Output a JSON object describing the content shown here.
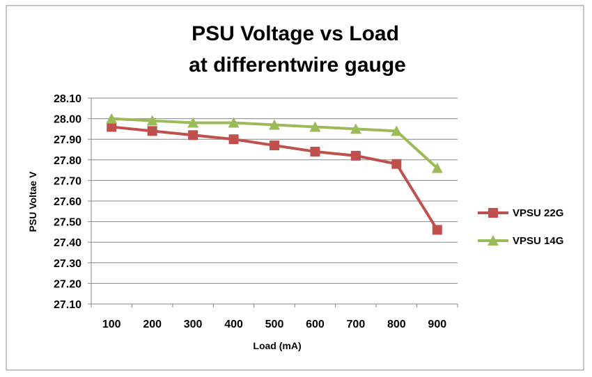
{
  "chart_data": {
    "type": "line",
    "title_lines": [
      "PSU Voltage vs Load",
      "at differentwire gauge"
    ],
    "xlabel": "Load (mA)",
    "ylabel": "PSU Voltae V",
    "categories": [
      "100",
      "200",
      "300",
      "400",
      "500",
      "600",
      "700",
      "800",
      "900"
    ],
    "ylim": [
      27.1,
      28.1
    ],
    "yticks": [
      "27.10",
      "27.20",
      "27.30",
      "27.40",
      "27.50",
      "27.60",
      "27.70",
      "27.80",
      "27.90",
      "28.00",
      "28.10"
    ],
    "grid": true,
    "legend_position": "right",
    "series": [
      {
        "name": "VPSU 22G",
        "values": [
          27.96,
          27.94,
          27.92,
          27.9,
          27.87,
          27.84,
          27.82,
          27.78,
          27.46
        ],
        "color": "#c0504d",
        "marker": "square"
      },
      {
        "name": "VPSU 14G",
        "values": [
          28.0,
          27.99,
          27.98,
          27.98,
          27.97,
          27.96,
          27.95,
          27.94,
          27.76
        ],
        "color": "#9bbb59",
        "marker": "triangle"
      }
    ]
  }
}
